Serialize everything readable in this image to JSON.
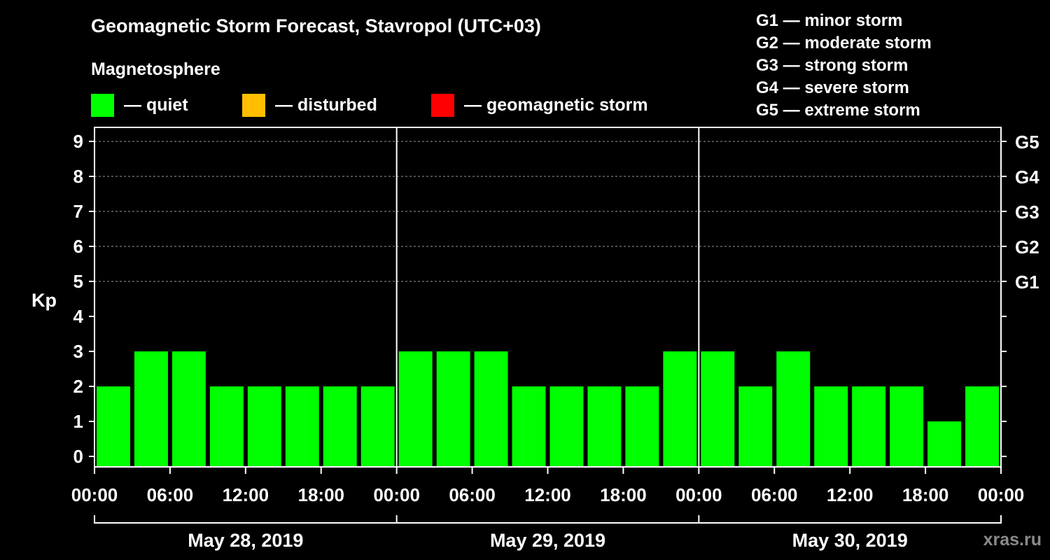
{
  "header": {
    "title": "Geomagnetic Storm Forecast, Stavropol (UTC+03)",
    "subtitle": "Magnetosphere"
  },
  "legend": [
    {
      "label": "— quiet",
      "color": "#00ff00"
    },
    {
      "label": "— disturbed",
      "color": "#ffbf00"
    },
    {
      "label": "— geomagnetic storm",
      "color": "#ff0000"
    }
  ],
  "g_scale": [
    "G1 — minor storm",
    "G2 — moderate storm",
    "G3 — strong storm",
    "G4 — severe storm",
    "G5 — extreme storm"
  ],
  "watermark": "xras.ru",
  "chart_data": {
    "type": "bar",
    "title": "Geomagnetic Storm Forecast, Stavropol (UTC+03)",
    "ylabel": "Kp",
    "ylim": [
      0,
      9
    ],
    "yticks": [
      "0",
      "1",
      "2",
      "3",
      "4",
      "5",
      "6",
      "7",
      "8",
      "9"
    ],
    "right_ticks": [
      {
        "kp": 5,
        "label": "G1"
      },
      {
        "kp": 6,
        "label": "G2"
      },
      {
        "kp": 7,
        "label": "G3"
      },
      {
        "kp": 8,
        "label": "G4"
      },
      {
        "kp": 9,
        "label": "G5"
      }
    ],
    "x_tick_labels": [
      "00:00",
      "06:00",
      "12:00",
      "18:00",
      "00:00",
      "06:00",
      "12:00",
      "18:00",
      "00:00",
      "06:00",
      "12:00",
      "18:00",
      "00:00"
    ],
    "days": [
      "May 28, 2019",
      "May 29, 2019",
      "May 30, 2019"
    ],
    "bins_per_day": 8,
    "values": [
      2,
      3,
      3,
      2,
      2,
      2,
      2,
      2,
      3,
      3,
      3,
      2,
      2,
      2,
      2,
      3,
      3,
      2,
      3,
      2,
      2,
      2,
      1,
      2
    ],
    "bar_color": "#00ff00",
    "grid_lines": [
      5,
      6,
      7,
      8,
      9
    ]
  }
}
